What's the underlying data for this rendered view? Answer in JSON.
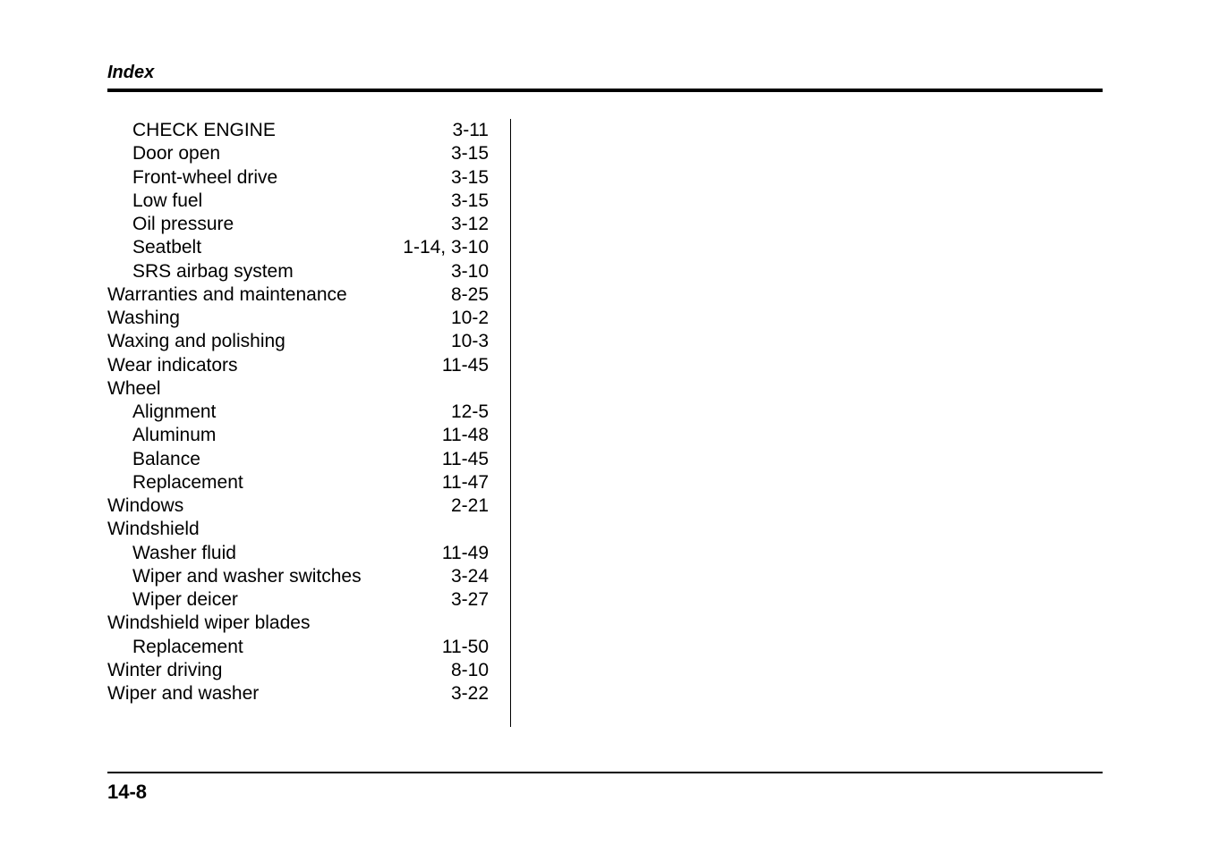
{
  "header": {
    "title": "Index"
  },
  "footer": {
    "page_number": "14-8"
  },
  "index": {
    "entries": [
      {
        "label": "CHECK ENGINE",
        "page": "3-11",
        "indent": 1
      },
      {
        "label": "Door open",
        "page": "3-15",
        "indent": 1
      },
      {
        "label": "Front-wheel drive",
        "page": "3-15",
        "indent": 1
      },
      {
        "label": "Low fuel",
        "page": "3-15",
        "indent": 1
      },
      {
        "label": "Oil pressure",
        "page": "3-12",
        "indent": 1
      },
      {
        "label": "Seatbelt",
        "page": "1-14, 3-10",
        "indent": 1
      },
      {
        "label": "SRS airbag system",
        "page": "3-10",
        "indent": 1
      },
      {
        "label": "Warranties and maintenance",
        "page": "8-25",
        "indent": 0
      },
      {
        "label": "Washing",
        "page": "10-2",
        "indent": 0
      },
      {
        "label": "Waxing and polishing",
        "page": "10-3",
        "indent": 0
      },
      {
        "label": "Wear indicators",
        "page": "11-45",
        "indent": 0
      },
      {
        "label": "Wheel",
        "page": "",
        "indent": 0,
        "heading_only": true
      },
      {
        "label": "Alignment",
        "page": "12-5",
        "indent": 1
      },
      {
        "label": "Aluminum",
        "page": "11-48",
        "indent": 1
      },
      {
        "label": "Balance",
        "page": "11-45",
        "indent": 1
      },
      {
        "label": "Replacement",
        "page": "11-47",
        "indent": 1
      },
      {
        "label": "Windows",
        "page": "2-21",
        "indent": 0
      },
      {
        "label": "Windshield",
        "page": "",
        "indent": 0,
        "heading_only": true
      },
      {
        "label": "Washer fluid",
        "page": "11-49",
        "indent": 1
      },
      {
        "label": "Wiper and washer switches",
        "page": "3-24",
        "indent": 1
      },
      {
        "label": "Wiper deicer",
        "page": "3-27",
        "indent": 1
      },
      {
        "label": "Windshield wiper blades",
        "page": "",
        "indent": 0,
        "heading_only": true
      },
      {
        "label": "Replacement",
        "page": "11-50",
        "indent": 1
      },
      {
        "label": "Winter driving",
        "page": "8-10",
        "indent": 0
      },
      {
        "label": "Wiper and washer",
        "page": "3-22",
        "indent": 0
      }
    ]
  }
}
